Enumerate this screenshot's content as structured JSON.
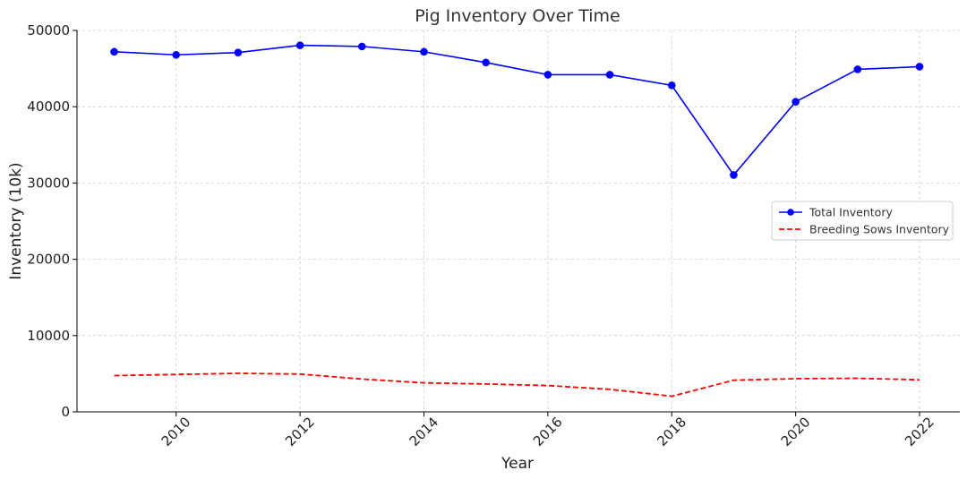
{
  "chart_data": {
    "type": "line",
    "title": "Pig Inventory Over Time",
    "xlabel": "Year",
    "ylabel": "Inventory (10k)",
    "x": [
      2009,
      2010,
      2011,
      2012,
      2013,
      2014,
      2015,
      2016,
      2017,
      2018,
      2019,
      2020,
      2021,
      2022
    ],
    "xlim": [
      2008.4,
      2022.65
    ],
    "ylim": [
      0,
      50000
    ],
    "xticks": [
      2010,
      2012,
      2014,
      2016,
      2018,
      2020,
      2022
    ],
    "yticks": [
      0,
      10000,
      20000,
      30000,
      40000,
      50000
    ],
    "grid": true,
    "legend_position": "center-right",
    "series": [
      {
        "name": "Total Inventory",
        "color": "#0000ff",
        "style": "solid",
        "marker": "circle",
        "values": [
          47200,
          46800,
          47100,
          48050,
          47900,
          47200,
          45800,
          44200,
          44200,
          42800,
          31050,
          40650,
          44900,
          45250
        ]
      },
      {
        "name": "Breeding Sows Inventory",
        "color": "#ff0000",
        "style": "dashed",
        "marker": "none",
        "values": [
          4750,
          4900,
          5050,
          4950,
          4300,
          3800,
          3650,
          3450,
          2950,
          2050,
          4150,
          4350,
          4400,
          4200
        ]
      }
    ]
  }
}
